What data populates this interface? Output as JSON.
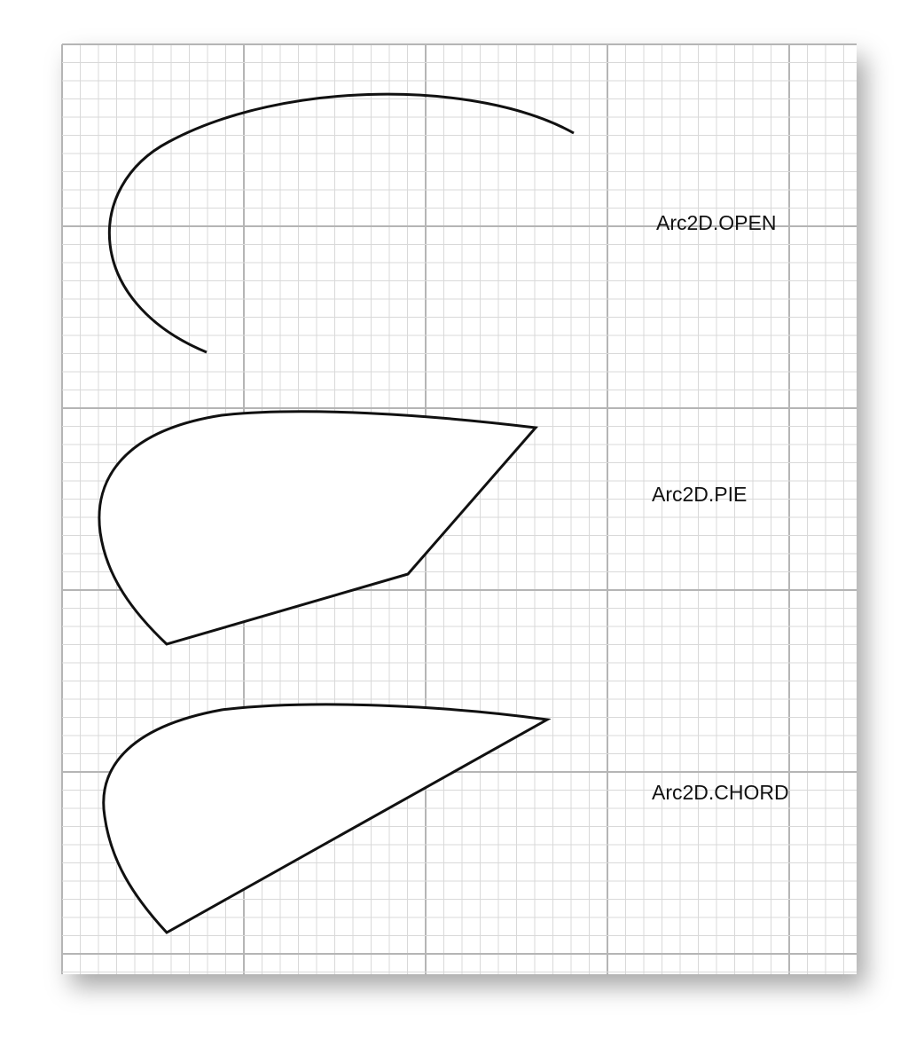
{
  "labels": {
    "open": "Arc2D.OPEN",
    "pie": "Arc2D.PIE",
    "chord": "Arc2D.CHORD"
  },
  "colors": {
    "paper": "#ffffff",
    "minor_grid": "#d9d9d9",
    "major_grid": "#b5b5b5",
    "stroke": "#111111",
    "fill": "#ffffff"
  }
}
